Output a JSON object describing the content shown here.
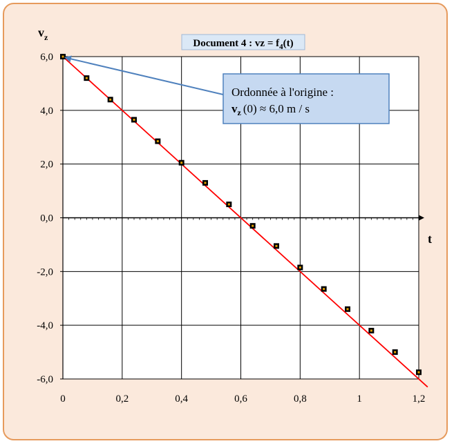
{
  "chart_data": {
    "type": "scatter",
    "title": "Document 4 : vz = f",
    "title_sub": "4",
    "title_end": "(t)",
    "xlabel": "t",
    "ylabel": "v",
    "ylabel_sub": "z",
    "xlim": [
      0,
      1.2
    ],
    "ylim": [
      -6,
      6
    ],
    "x_ticks": [
      0,
      0.2,
      0.4,
      0.6,
      0.8,
      1.0,
      1.2
    ],
    "x_tick_labels": [
      "0",
      "0,2",
      "0,4",
      "0,6",
      "0,8",
      "1",
      "1,2"
    ],
    "y_ticks": [
      6,
      4,
      2,
      0,
      -2,
      -4,
      -6
    ],
    "y_tick_labels": [
      "6,0",
      "4,0",
      "2,0",
      "0,0",
      "-2,0",
      "-4,0",
      "-6,0"
    ],
    "grid": true,
    "series": [
      {
        "points_x": [
          0,
          0.08,
          0.16,
          0.24,
          0.32,
          0.4,
          0.48,
          0.56,
          0.64,
          0.72,
          0.8,
          0.88,
          0.96,
          1.04,
          1.12,
          1.2
        ],
        "points_y": [
          6.0,
          5.2,
          4.4,
          3.65,
          2.85,
          2.05,
          1.3,
          0.5,
          -0.3,
          -1.05,
          -1.85,
          -2.65,
          -3.4,
          -4.2,
          -5.0,
          -5.75
        ],
        "color": "#000000"
      },
      {
        "line_x": [
          0,
          1.23
        ],
        "line_y": [
          6.0,
          -6.3
        ],
        "color": "#ff0000"
      }
    ],
    "annotation": {
      "line1": "Ordonnée à l'origine :",
      "line2_bold": "v",
      "line2_sub": "z",
      "line2_rest": "(0) ≈ 6,0 m / s",
      "points_to": [
        0,
        6.0
      ],
      "arrow_color": "#4f81bd"
    },
    "frame_color": "#e69a5c",
    "background_color": "#fbe9dc"
  }
}
